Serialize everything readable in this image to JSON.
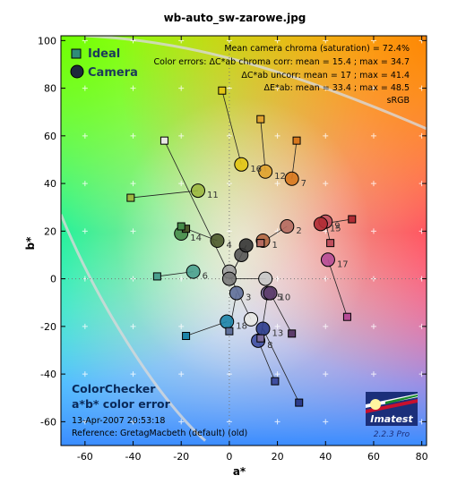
{
  "chart_data": {
    "type": "scatter",
    "title": "wb-auto_sw-zarowe.jpg",
    "xlabel": "a*",
    "ylabel": "b*",
    "xlim": [
      -70,
      82
    ],
    "ylim": [
      -70,
      102
    ],
    "xticks": [
      -60,
      -40,
      -20,
      0,
      20,
      40,
      60,
      80
    ],
    "yticks": [
      -60,
      -40,
      -20,
      0,
      20,
      40,
      60,
      80,
      100
    ],
    "legend": {
      "placement": "top-left",
      "entries": [
        {
          "label": "Ideal",
          "marker": "square"
        },
        {
          "label": "Camera",
          "marker": "circle"
        }
      ]
    },
    "stats": [
      "Mean camera chroma (saturation) = 72.4%",
      "Color errors:  ΔC*ab chroma corr:  mean = 15.4 ;  max = 34.7",
      "ΔC*ab uncorr:  mean = 17 ;  max = 41.4",
      "ΔE*ab:  mean = 33.4 ;  max = 48.5",
      "sRGB"
    ],
    "info_lines": [
      "ColorChecker",
      "a*b* color error"
    ],
    "date": "13-Apr-2007 20:53:18",
    "reference": "Reference: GretagMacbeth (default) (old)",
    "logo_text": "Imatest",
    "version_text": "2.2.3  Pro",
    "patches": [
      {
        "id": "1",
        "ideal": [
          13,
          15
        ],
        "camera": [
          14,
          16
        ],
        "color": "#b0643f"
      },
      {
        "id": "2",
        "ideal": [
          13,
          15
        ],
        "camera": [
          24,
          22
        ],
        "color": "#b56a5f"
      },
      {
        "id": "3",
        "ideal": [
          0,
          -22
        ],
        "camera": [
          3,
          -6
        ],
        "color": "#5f6f9a"
      },
      {
        "id": "4",
        "ideal": [
          -18,
          21
        ],
        "camera": [
          -5,
          16
        ],
        "color": "#4c5a2c"
      },
      {
        "id": "5",
        "ideal": [
          13,
          -25
        ],
        "camera": [
          16,
          -6
        ],
        "color": "#7b6c9e"
      },
      {
        "id": "6",
        "ideal": [
          -30,
          1
        ],
        "camera": [
          -15,
          3
        ],
        "color": "#4aa08e"
      },
      {
        "id": "7",
        "ideal": [
          28,
          58
        ],
        "camera": [
          26,
          42
        ],
        "color": "#d8781e"
      },
      {
        "id": "8",
        "ideal": [
          19,
          -43
        ],
        "camera": [
          12,
          -26
        ],
        "color": "#3f4ea0"
      },
      {
        "id": "9",
        "ideal": [
          42,
          15
        ],
        "camera": [
          40,
          24
        ],
        "color": "#c04e5c"
      },
      {
        "id": "10",
        "ideal": [
          26,
          -23
        ],
        "camera": [
          17,
          -6
        ],
        "color": "#5c3c6a"
      },
      {
        "id": "11",
        "ideal": [
          -41,
          34
        ],
        "camera": [
          -13,
          37
        ],
        "color": "#9cb840"
      },
      {
        "id": "12",
        "ideal": [
          13,
          67
        ],
        "camera": [
          15,
          45
        ],
        "color": "#e0a22e"
      },
      {
        "id": "13",
        "ideal": [
          29,
          -52
        ],
        "camera": [
          14,
          -21
        ],
        "color": "#2c3c8c"
      },
      {
        "id": "14",
        "ideal": [
          -20,
          22
        ],
        "camera": [
          -20,
          19
        ],
        "color": "#468c4a"
      },
      {
        "id": "15",
        "ideal": [
          51,
          25
        ],
        "camera": [
          38,
          23
        ],
        "color": "#b02c34"
      },
      {
        "id": "16",
        "ideal": [
          -3,
          79
        ],
        "camera": [
          5,
          48
        ],
        "color": "#e2c514"
      },
      {
        "id": "17",
        "ideal": [
          49,
          -16
        ],
        "camera": [
          41,
          8
        ],
        "color": "#b64c96"
      },
      {
        "id": "18",
        "ideal": [
          -18,
          -24
        ],
        "camera": [
          -1,
          -18
        ],
        "color": "#1c84a8"
      },
      {
        "id": "19",
        "ideal": [
          -27,
          58
        ],
        "camera": [
          9,
          -17
        ],
        "color": "#e8e8e4"
      },
      {
        "id": "20",
        "ideal": [
          0,
          0
        ],
        "camera": [
          15,
          0
        ],
        "color": "#c8c8c8"
      },
      {
        "id": "21",
        "ideal": [
          0,
          0
        ],
        "camera": [
          0,
          3
        ],
        "color": "#a0a0a0"
      },
      {
        "id": "22",
        "ideal": [
          0,
          0
        ],
        "camera": [
          0,
          0
        ],
        "color": "#7a7a7a"
      },
      {
        "id": "23",
        "ideal": [
          0,
          0
        ],
        "camera": [
          5,
          10
        ],
        "color": "#555555"
      },
      {
        "id": "24",
        "ideal": [
          0,
          0
        ],
        "camera": [
          7,
          14
        ],
        "color": "#343434"
      }
    ],
    "labeled_patches": [
      "1",
      "2",
      "3",
      "4",
      "5",
      "6",
      "7",
      "8",
      "9",
      "10",
      "11",
      "12",
      "13",
      "14",
      "15",
      "16",
      "17",
      "18"
    ]
  }
}
